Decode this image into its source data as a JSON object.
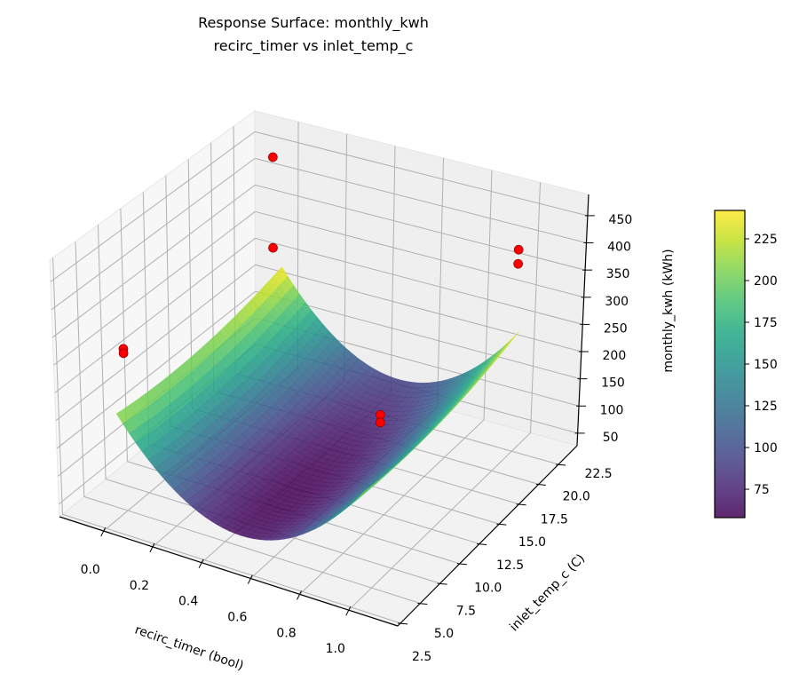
{
  "chart_data": {
    "type": "surface3d",
    "title": [
      "Response Surface: monthly_kwh",
      "recirc_timer vs inlet_temp_c"
    ],
    "xlabel": "recirc_timer (bool)",
    "ylabel": "inlet_temp_c (C)",
    "zlabel": "monthly_kwh (kWh)",
    "xlim": [
      -0.18,
      1.2
    ],
    "ylim": [
      2.15,
      24.85
    ],
    "zlim": [
      27,
      489
    ],
    "xticks": [
      "0.0",
      "0.2",
      "0.4",
      "0.6",
      "0.8",
      "1.0"
    ],
    "yticks": [
      "2.5",
      "5.0",
      "7.5",
      "10.0",
      "12.5",
      "15.0",
      "17.5",
      "20.0",
      "22.5"
    ],
    "zticks": [
      "50",
      "100",
      "150",
      "200",
      "250",
      "300",
      "350",
      "400",
      "450"
    ],
    "colorbar": {
      "colormap": "viridis",
      "range": [
        58,
        242
      ],
      "ticks": [
        "75",
        "100",
        "125",
        "150",
        "175",
        "200",
        "225"
      ]
    },
    "surface": {
      "model": "quadratic",
      "x_range": [
        0,
        1
      ],
      "y_range": [
        4,
        23
      ],
      "z_min": 58,
      "minimum_at": {
        "x": 0.5,
        "y": 10
      },
      "curvature": {
        "x": 600,
        "y": 0.2
      },
      "colormap": "viridis",
      "alpha": 0.85
    },
    "scatter": {
      "color": "#ff0000",
      "edge_color": "#8b0000",
      "points": [
        {
          "x": 0,
          "y": 5,
          "z": 320
        },
        {
          "x": 0,
          "y": 5,
          "z": 312
        },
        {
          "x": 0,
          "y": 22,
          "z": 459
        },
        {
          "x": 0,
          "y": 22,
          "z": 290
        },
        {
          "x": 1,
          "y": 22.5,
          "z": 398
        },
        {
          "x": 1,
          "y": 22.5,
          "z": 372
        },
        {
          "x": 1,
          "y": 6,
          "z": 328
        },
        {
          "x": 1,
          "y": 6,
          "z": 314
        }
      ]
    },
    "grid": true
  }
}
